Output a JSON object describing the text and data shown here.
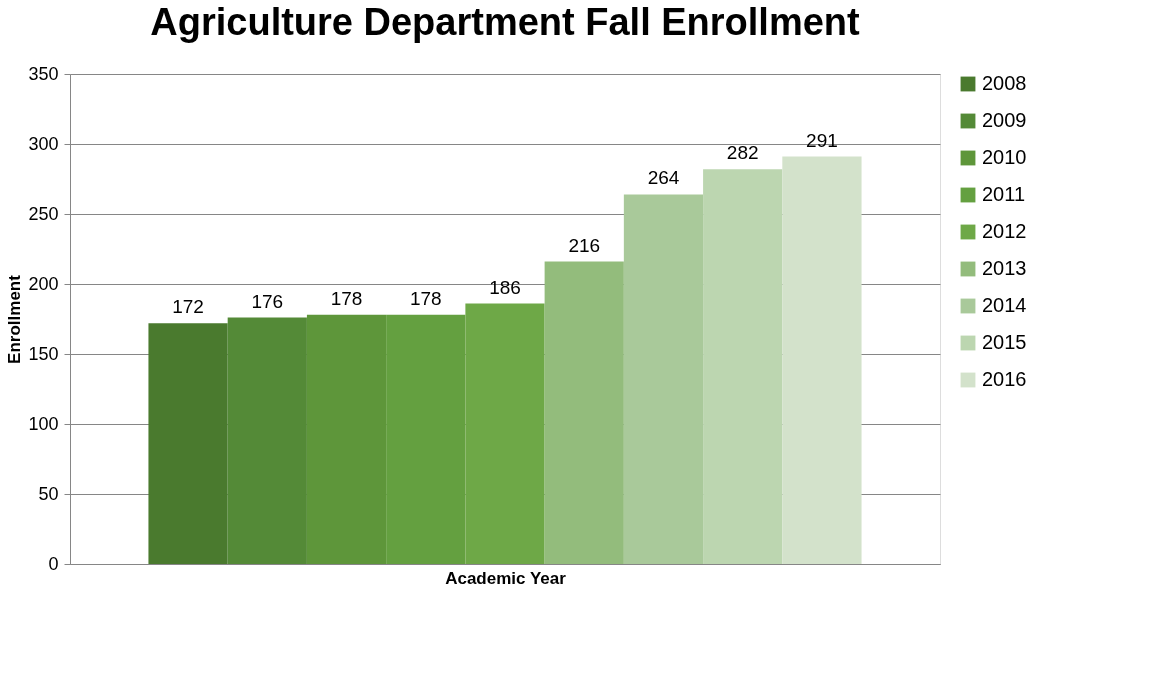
{
  "chart_data": {
    "type": "bar",
    "title": "Agriculture Department Fall Enrollment",
    "xlabel": "Academic Year",
    "ylabel": "Enrollment",
    "categories": [
      null
    ],
    "series": [
      {
        "name": "2008",
        "color": "#4a7a2e",
        "values": [
          172
        ]
      },
      {
        "name": "2009",
        "color": "#548a37",
        "values": [
          176
        ]
      },
      {
        "name": "2010",
        "color": "#5e963a",
        "values": [
          178
        ]
      },
      {
        "name": "2011",
        "color": "#64a040",
        "values": [
          178
        ]
      },
      {
        "name": "2012",
        "color": "#6ea847",
        "values": [
          186
        ]
      },
      {
        "name": "2013",
        "color": "#93bc7c",
        "values": [
          216
        ]
      },
      {
        "name": "2014",
        "color": "#a9c99a",
        "values": [
          264
        ]
      },
      {
        "name": "2015",
        "color": "#bcd6b0",
        "values": [
          282
        ]
      },
      {
        "name": "2016",
        "color": "#d3e2cb",
        "values": [
          291
        ]
      }
    ],
    "ylim": [
      0,
      350
    ],
    "yticks": [
      0,
      50,
      100,
      150,
      200,
      250,
      300,
      350
    ],
    "grid": "y",
    "legend": "right",
    "data_labels": true
  }
}
